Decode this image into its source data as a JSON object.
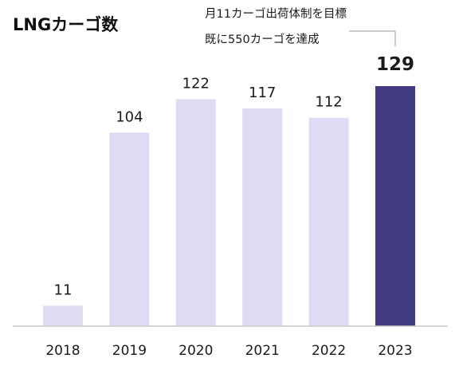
{
  "chart_data": {
    "type": "bar",
    "title": "LNGカーゴ数",
    "categories": [
      "2018",
      "2019",
      "2020",
      "2021",
      "2022",
      "2023"
    ],
    "values": [
      11,
      104,
      122,
      117,
      112,
      129
    ],
    "ylim": [
      0,
      129
    ],
    "grid": false,
    "highlight_category": "2023",
    "annotation": {
      "lines": [
        "月11カーゴ出荷体制を目標",
        "既に550カーゴを達成"
      ],
      "target_category": "2023"
    },
    "colors": {
      "bar": "#dedcf5",
      "highlight": "#413c82",
      "axis": "#c8c8c8",
      "leader": "#999999"
    }
  }
}
